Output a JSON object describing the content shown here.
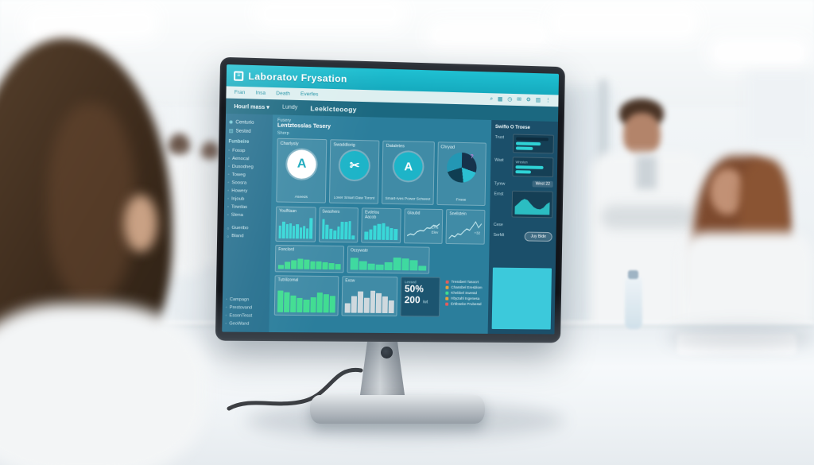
{
  "screen": {
    "titlebar": {
      "title": "Laboratov Frysation",
      "app_icon_glyph": "≡"
    },
    "menubar": {
      "items": [
        "Fran",
        "Insa",
        "Death",
        "Everfes"
      ],
      "icons": [
        {
          "name": "search",
          "glyph": "⌕"
        },
        {
          "name": "grid",
          "glyph": "▦"
        },
        {
          "name": "clock",
          "glyph": "◷"
        },
        {
          "name": "mail",
          "glyph": "✉"
        },
        {
          "name": "gear",
          "glyph": "⚙"
        },
        {
          "name": "apps",
          "glyph": "▥"
        },
        {
          "name": "more",
          "glyph": "⋮"
        }
      ]
    },
    "filterbar": {
      "dropdown": "Hourl mass",
      "caret": "▾",
      "item2": "Lundy",
      "item3": "Leeklcteoogy"
    },
    "sidebar": {
      "top_items": [
        {
          "icon": "pin",
          "glyph": "◉",
          "label": "Centurio"
        },
        {
          "icon": "doc",
          "glyph": "▤",
          "label": "Sested"
        }
      ],
      "section": "Funbeire",
      "items": [
        "Fossp",
        "Aenocal",
        "Dusodneg",
        "Toweg",
        "Soosra",
        "Howery",
        "Injoub",
        "Towdas",
        "Slena"
      ],
      "items2": [
        "Gueribo",
        "Bland"
      ],
      "bottom_items": [
        "Campagn",
        "Prestovand",
        "EssonTesst",
        "GeoWand"
      ]
    },
    "main": {
      "subtitle": "Fusery",
      "title": "Lentztosslas Tesery",
      "section_label": "Sherp",
      "gauge_cards": [
        {
          "title": "Charlysly",
          "glyph": "A",
          "caption": "Aseeds"
        },
        {
          "title": "Swaddlorig",
          "glyph": "✂",
          "caption": "Lover Smart Daw Toront"
        },
        {
          "title": "Dataletes",
          "glyph": "A",
          "caption": "Smart-Ives Power Schweiz"
        },
        {
          "title": "Chryad",
          "caption": "Frisse",
          "marker": "?",
          "pie": [
            {
              "color": "#16324b",
              "value": 30
            },
            {
              "color": "#2bc0d2",
              "value": 18
            },
            {
              "color": "#0f3e52",
              "value": 22
            },
            {
              "color": "#2397b4",
              "value": 30
            }
          ]
        }
      ],
      "row2": [
        {
          "title": "YoulNaan",
          "color": "#39d8d8",
          "values": [
            55,
            72,
            62,
            68,
            55,
            62,
            50,
            57,
            45,
            92
          ]
        },
        {
          "title": "Swashers",
          "color": "#39d8d8",
          "values": [
            88,
            62,
            45,
            40,
            56,
            78,
            78,
            80,
            16
          ]
        },
        {
          "title": "Evdelou\nAacob",
          "color": "#39d8d8",
          "values": [
            45,
            58,
            78,
            88,
            92,
            72,
            66,
            60
          ]
        },
        {
          "title": "Glaubd",
          "line": {
            "values": [
              22,
              30,
              26,
              40,
              46,
              44,
              58,
              56,
              70,
              66,
              78
            ],
            "color": "#cdeef2"
          },
          "note1": "17%",
          "note2": "Elev"
        },
        {
          "title": "Snellstein",
          "line": {
            "values": [
              12,
              26,
              20,
              34,
              30,
              44,
              56,
              50,
              68,
              88,
              62,
              80
            ],
            "color": "#cdeef2"
          },
          "note1": "+32",
          "note2": ""
        }
      ],
      "row3": [
        {
          "title": "Fonclord",
          "color": "#41dd92",
          "values": [
            25,
            48,
            62,
            72,
            66,
            56,
            52,
            47,
            42,
            36
          ]
        },
        {
          "title": "Ozzywate",
          "color": "#3fd9a0",
          "values": [
            82,
            58,
            42,
            36,
            52,
            88,
            82,
            70,
            30
          ]
        }
      ],
      "row4": [
        {
          "title": "Tutrilizomal",
          "color": "#41dd92",
          "values": [
            78,
            72,
            62,
            52,
            46,
            56,
            72,
            66,
            60
          ]
        },
        {
          "title": "Exsw",
          "color": "#cfd9de",
          "values": [
            36,
            62,
            78,
            56,
            82,
            72,
            60,
            46
          ]
        }
      ],
      "stat": {
        "label": "Lessed",
        "value1": "50%",
        "value2": "200",
        "unit": "/wt"
      },
      "legend": {
        "items": [
          {
            "color": "#e35d5d",
            "label": "Tressbert Tasocrt"
          },
          {
            "color": "#e8a33d",
            "label": "Chassbel Eresblom"
          },
          {
            "color": "#3ddc8f",
            "label": "Khebbel Swestd"
          },
          {
            "color": "#e8a33d",
            "label": "Hbyzahl Ingenesa"
          },
          {
            "color": "#e35d5d",
            "label": "Erbbseke Prubestd"
          }
        ]
      }
    },
    "panel": {
      "title": "Swiflo O Troese",
      "trust": {
        "label": "Trust"
      },
      "wast": {
        "label": "Wast",
        "caption": "Wresten"
      },
      "tyrew": {
        "label": "Tyrew",
        "value": "West 22"
      },
      "ernst": {
        "label": "Ernst",
        "area": {
          "values": [
            38,
            52,
            68,
            76,
            70,
            52,
            36,
            28,
            26,
            34,
            52,
            62
          ],
          "color": "#2fd3d6"
        }
      },
      "cese": {
        "label": "Cese"
      },
      "serfdt": {
        "label": "Serfdt",
        "button": "Juy Bide"
      }
    }
  }
}
